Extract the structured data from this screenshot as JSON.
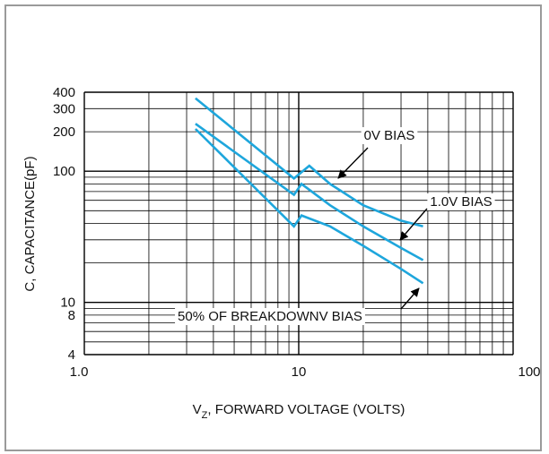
{
  "chart_data": {
    "type": "line",
    "x_scale": "log",
    "y_scale": "log",
    "xlim": [
      1,
      100
    ],
    "ylim": [
      4,
      400
    ],
    "x_ticks": [
      "1.0",
      "10",
      "100"
    ],
    "y_ticks": [
      "400",
      "300",
      "200",
      "100",
      "10",
      "8",
      "4"
    ],
    "xlabel": {
      "prefix": "V",
      "sub": "Z",
      "rest": ", FORWARD VOLTAGE (VOLTS)"
    },
    "ylabel": "C, CAPACITANCE(pF)",
    "grid": true,
    "series": [
      {
        "name": "0V BIAS",
        "color": "#1ea6dc",
        "x": [
          3.3,
          9.5,
          11.2,
          14,
          20,
          30,
          38
        ],
        "y": [
          360,
          88,
          110,
          80,
          55,
          42,
          38
        ]
      },
      {
        "name": "1.0V BIAS",
        "color": "#1ea6dc",
        "x": [
          3.3,
          9.5,
          10.3,
          14,
          20,
          30,
          38
        ],
        "y": [
          230,
          66,
          80,
          55,
          38,
          26,
          21
        ]
      },
      {
        "name": "50% OF BREAKDOWNV BIAS",
        "color": "#1ea6dc",
        "x": [
          3.3,
          9.5,
          10.3,
          14,
          20,
          30,
          38
        ],
        "y": [
          210,
          38,
          46,
          38,
          27,
          18,
          14
        ]
      }
    ],
    "annotations": [
      {
        "text": "0V BIAS",
        "series": 0
      },
      {
        "text": "1.0V BIAS",
        "series": 1
      },
      {
        "text": "50% OF BREAKDOWNV BIAS",
        "series": 2
      }
    ]
  }
}
